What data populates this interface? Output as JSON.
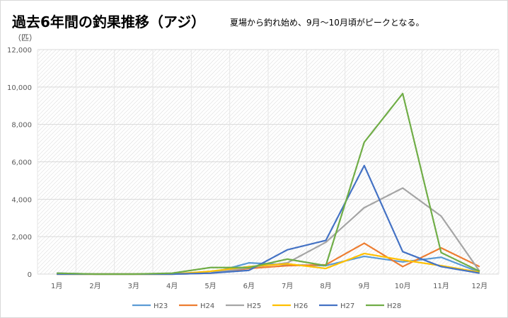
{
  "chart_data": {
    "type": "line",
    "title": "過去6年間の釣果推移（アジ）",
    "subtitle": "夏場から釣れ始め、9月～10月頃がピークとなる。",
    "ylabel": "（匹）",
    "xlabel": "",
    "ylim": [
      0,
      12000
    ],
    "yticks": [
      "0",
      "2,000",
      "4,000",
      "6,000",
      "8,000",
      "10,000",
      "12,000"
    ],
    "ytick_values": [
      0,
      2000,
      4000,
      6000,
      8000,
      10000,
      12000
    ],
    "categories": [
      "1月",
      "2月",
      "3月",
      "4月",
      "5月",
      "6月",
      "7月",
      "8月",
      "9月",
      "10月",
      "11月",
      "12月"
    ],
    "legend_position": "bottom",
    "grid": true,
    "series": [
      {
        "name": "H23",
        "color": "#5b9bd5",
        "values": [
          50,
          0,
          0,
          0,
          50,
          600,
          500,
          450,
          950,
          650,
          900,
          100
        ]
      },
      {
        "name": "H24",
        "color": "#ed7d31",
        "values": [
          0,
          0,
          0,
          0,
          50,
          300,
          450,
          500,
          1650,
          400,
          1400,
          400
        ]
      },
      {
        "name": "H25",
        "color": "#a5a5a5",
        "values": [
          0,
          0,
          0,
          0,
          50,
          350,
          600,
          1700,
          3550,
          4600,
          3100,
          150
        ]
      },
      {
        "name": "H26",
        "color": "#ffc000",
        "values": [
          0,
          0,
          0,
          0,
          150,
          400,
          550,
          300,
          1100,
          750,
          450,
          100
        ]
      },
      {
        "name": "H27",
        "color": "#4472c4",
        "values": [
          0,
          0,
          0,
          0,
          50,
          200,
          1300,
          1800,
          5800,
          1200,
          400,
          50
        ]
      },
      {
        "name": "H28",
        "color": "#70ad47",
        "values": [
          50,
          0,
          0,
          50,
          350,
          350,
          800,
          450,
          7050,
          9650,
          1150,
          150
        ]
      }
    ]
  }
}
